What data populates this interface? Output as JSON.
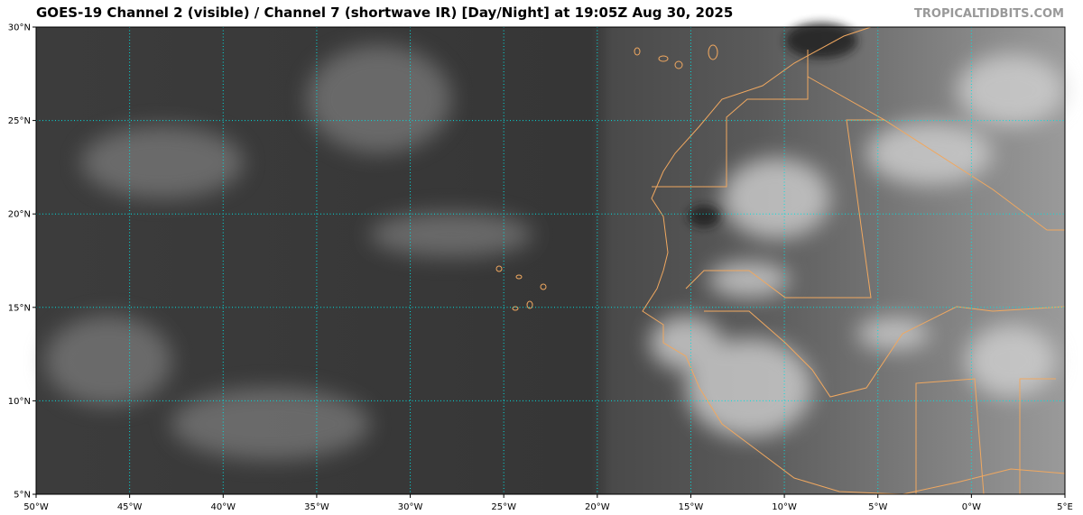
{
  "map": {
    "title": "GOES-19 Channel 2 (visible) / Channel 7 (shortwave IR) [Day/Night] at 19:05Z Aug 30, 2025",
    "credit": "TROPICALTIDBITS.COM",
    "lat_labels": [
      "30°N",
      "25°N",
      "20°N",
      "15°N",
      "10°N",
      "5°N"
    ],
    "lon_labels": [
      "50°W",
      "45°W",
      "40°W",
      "35°W",
      "30°W",
      "25°W",
      "20°W",
      "15°W",
      "10°W",
      "5°W",
      "0°W",
      "5°E"
    ]
  }
}
